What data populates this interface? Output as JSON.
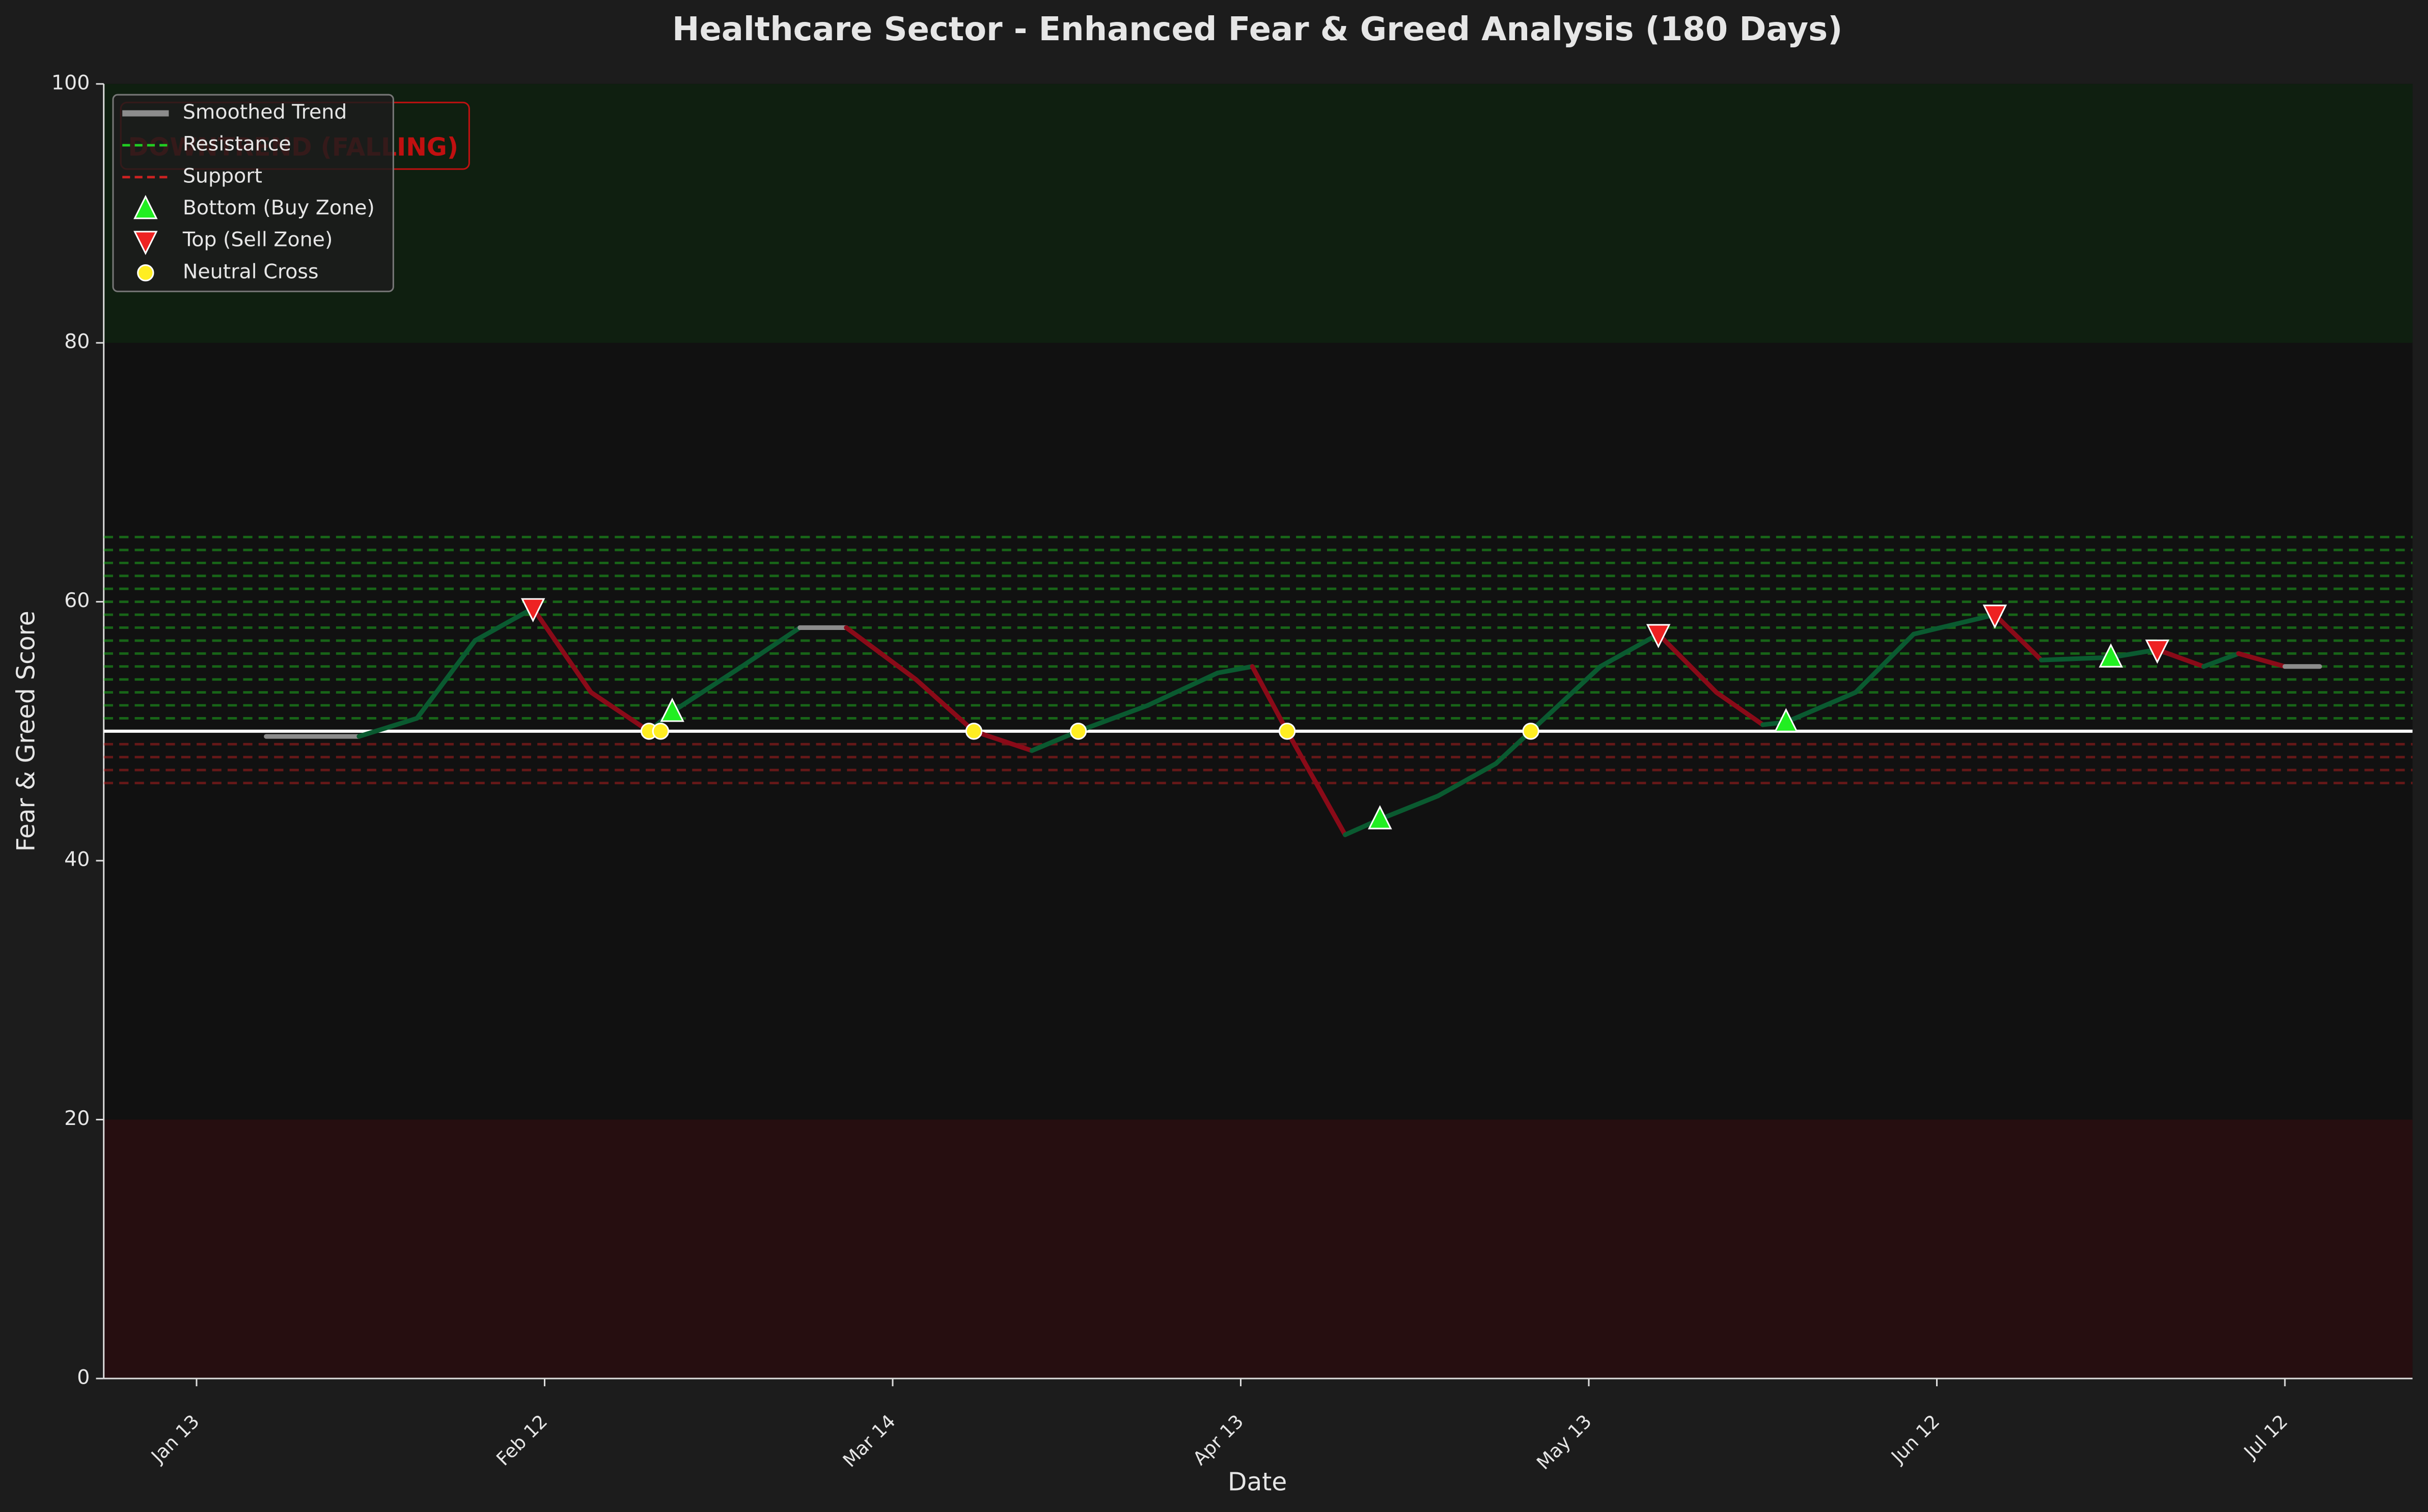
{
  "chart_data": {
    "type": "line",
    "title": "Healthcare Sector - Enhanced Fear & Greed Analysis (180 Days)",
    "x_label": "Date",
    "y_label": "Fear & Greed Score",
    "annotation": "DOWNTREND (FALLING)",
    "xlim": [
      "Jan 5",
      "Jul 23"
    ],
    "xticks": [
      "Jan 13",
      "Feb 12",
      "Mar 14",
      "Apr 13",
      "May 13",
      "Jun 12",
      "Jul 12"
    ],
    "ylim": [
      0,
      100
    ],
    "yticks": [
      0,
      20,
      40,
      60,
      80,
      100
    ],
    "neutral_level": 50,
    "zones": [
      {
        "range": [
          80,
          100
        ],
        "color": "#0f1f10"
      },
      {
        "range": [
          0,
          20
        ],
        "color": "#260e10"
      }
    ],
    "rising_color": "#0a5a30",
    "falling_color": "#8a0a18",
    "series": [
      {
        "name": "Smoothed Trend",
        "kind": "trend",
        "color": "#8c8c8c",
        "x": [
          "Jan 19",
          "Jan 27",
          "Feb 1",
          "Feb 6",
          "Feb 11",
          "Feb 16",
          "Feb 21",
          "Feb 23",
          "Mar 1",
          "Mar 6",
          "Mar 10",
          "Mar 16",
          "Mar 21",
          "Mar 26",
          "Mar 30",
          "Apr 5",
          "Apr 11",
          "Apr 14",
          "Apr 17",
          "Apr 22",
          "Apr 25",
          "Apr 30",
          "May 5",
          "May 8",
          "May 14",
          "May 19",
          "May 24",
          "May 28",
          "May 30",
          "Jun 5",
          "Jun 10",
          "Jun 17",
          "Jun 21",
          "Jun 27",
          "Jul 1",
          "Jul 5",
          "Jul 8",
          "Jul 12",
          "Jul 15"
        ],
        "values": [
          49.6,
          49.6,
          51,
          57,
          59.5,
          53,
          50,
          51.5,
          55,
          58,
          58,
          54,
          50,
          48.5,
          50,
          52,
          54.5,
          55,
          50,
          42,
          43.2,
          45,
          47.5,
          50,
          55,
          57.5,
          53,
          50.5,
          50.7,
          53,
          57.5,
          59,
          55.5,
          55.7,
          56.3,
          55,
          56,
          55,
          55
        ]
      },
      {
        "name": "Resistance",
        "kind": "levels",
        "color": "#22cc22",
        "values": [
          65,
          64,
          63,
          62,
          61,
          60,
          59,
          58,
          57,
          56,
          55,
          54,
          53,
          52,
          51
        ]
      },
      {
        "name": "Support",
        "kind": "levels",
        "color": "#cc2222",
        "values": [
          49,
          48,
          47,
          46
        ]
      },
      {
        "name": "Bottom (Buy Zone)",
        "kind": "marker",
        "marker": "triangle-up",
        "color": "#22ee22",
        "x": [
          "Feb 23",
          "Apr 25",
          "May 30",
          "Jun 27"
        ],
        "values": [
          51.5,
          43.2,
          50.7,
          55.7
        ]
      },
      {
        "name": "Top (Sell Zone)",
        "kind": "marker",
        "marker": "triangle-down",
        "color": "#ee2222",
        "x": [
          "Feb 11",
          "May 19",
          "Jun 17",
          "Jul 1"
        ],
        "values": [
          59.5,
          57.5,
          59,
          56.3
        ]
      },
      {
        "name": "Neutral Cross",
        "kind": "marker",
        "marker": "circle",
        "color": "#ffee22",
        "x": [
          "Feb 21",
          "Feb 22",
          "Mar 21",
          "Mar 30",
          "Apr 17",
          "May 8"
        ],
        "values": [
          50,
          50,
          50,
          50,
          50,
          50
        ]
      }
    ]
  }
}
